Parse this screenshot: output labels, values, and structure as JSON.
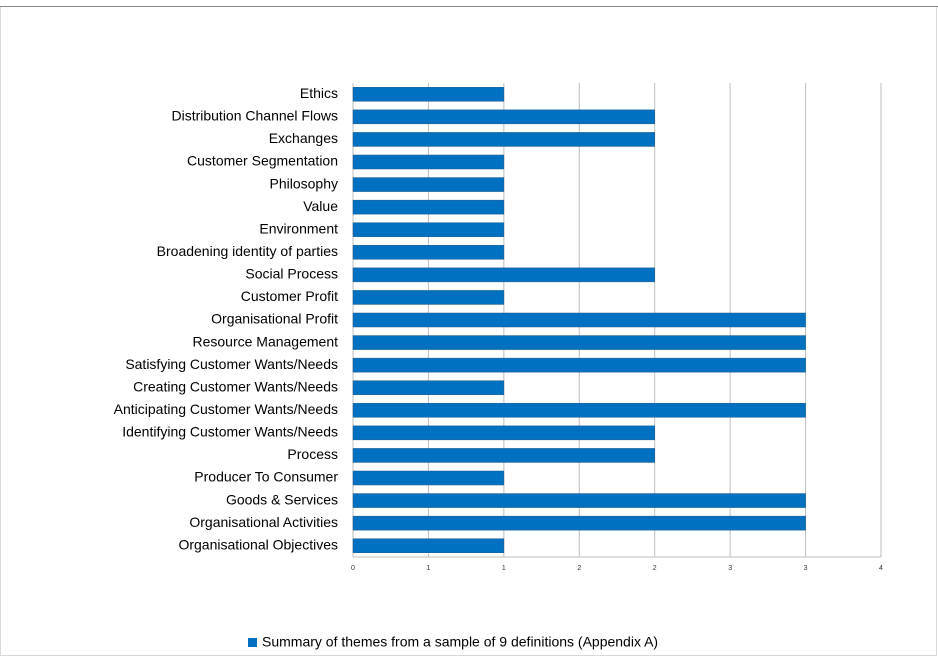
{
  "chart_data": {
    "type": "bar",
    "orientation": "horizontal",
    "categories": [
      "Ethics",
      "Distribution Channel Flows",
      "Exchanges",
      "Customer Segmentation",
      "Philosophy",
      "Value",
      "Environment",
      "Broadening identity of parties",
      "Social Process",
      "Customer Profit",
      "Organisational Profit",
      "Resource Management",
      "Satisfying Customer Wants/Needs",
      "Creating Customer Wants/Needs",
      "Anticipating Customer Wants/Needs",
      "Identifying Customer Wants/Needs",
      "Process",
      "Producer To Consumer",
      "Goods & Services",
      "Organisational Activities",
      "Organisational Objectives"
    ],
    "series": [
      {
        "name": "Summary of themes from a sample of 9 definitions (Appendix A)",
        "color": "#0070c0",
        "values": [
          1,
          2,
          2,
          1,
          1,
          1,
          1,
          1,
          2,
          1,
          3,
          3,
          3,
          1,
          3,
          2,
          2,
          1,
          3,
          3,
          1
        ]
      }
    ],
    "xlim": [
      0,
      3.5
    ],
    "xticks": [
      0,
      {
        "value": 0.5,
        "label": "1"
      },
      1,
      {
        "value": 1.5,
        "label": "2"
      },
      2,
      {
        "value": 2.5,
        "label": "3"
      },
      3,
      {
        "value": 3.5,
        "label": "4"
      }
    ],
    "grid": true,
    "legend": "bottom"
  }
}
